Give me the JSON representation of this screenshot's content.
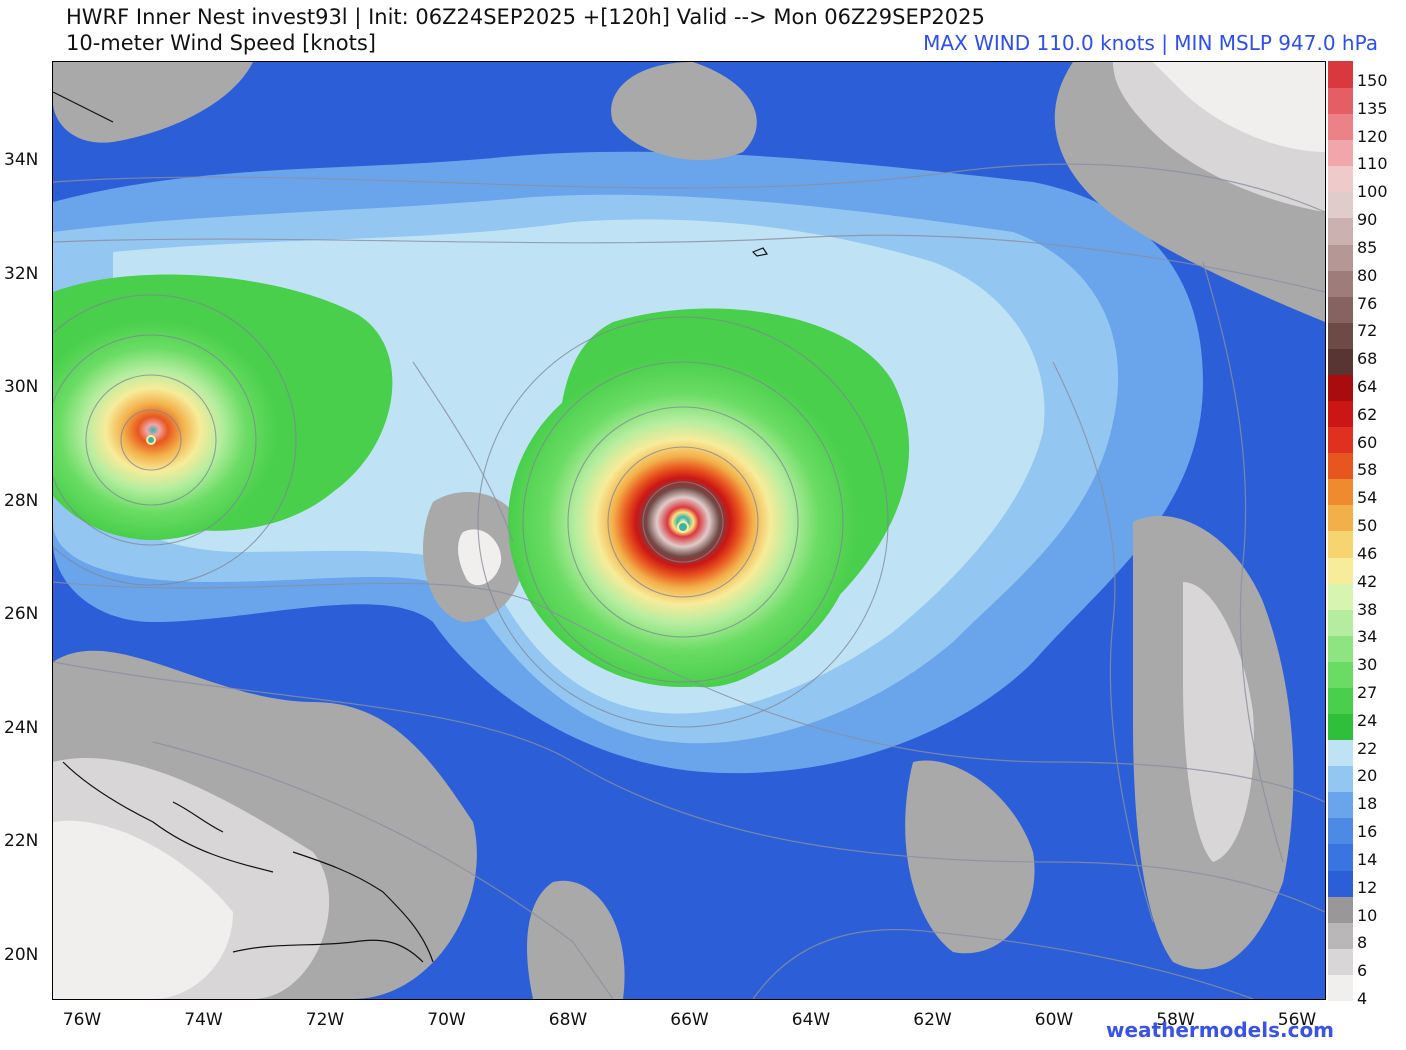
{
  "header": {
    "title_line1": "HWRF Inner Nest  invest93l | Init: 06Z24SEP2025 +[120h] Valid --> Mon 06Z29SEP2025",
    "title_line2": "10-meter Wind Speed [knots]",
    "stats": "MAX WIND 110.0 knots | MIN MSLP 947.0 hPa"
  },
  "axes": {
    "lat_labels": [
      "34N",
      "32N",
      "30N",
      "28N",
      "26N",
      "24N",
      "22N",
      "20N"
    ],
    "lon_labels": [
      "76W",
      "74W",
      "72W",
      "70W",
      "68W",
      "66W",
      "64W",
      "62W",
      "60W",
      "58W",
      "56W"
    ]
  },
  "colorbar": {
    "labels": [
      "150",
      "135",
      "120",
      "110",
      "100",
      "90",
      "85",
      "80",
      "76",
      "72",
      "68",
      "64",
      "62",
      "60",
      "58",
      "54",
      "50",
      "46",
      "42",
      "38",
      "34",
      "30",
      "27",
      "24",
      "22",
      "20",
      "18",
      "16",
      "14",
      "12",
      "10",
      "8",
      "6",
      "4"
    ],
    "colors": [
      "#f1eeee",
      "#d8d6d6",
      "#b9b7b7",
      "#999797",
      "#2c5fd7",
      "#3a74e0",
      "#4d8ae6",
      "#6aa5ec",
      "#94c6f2",
      "#bfe3f5",
      "#2fbf3a",
      "#49cf4b",
      "#6adc64",
      "#8ee481",
      "#b4ed9f",
      "#d7f4b0",
      "#f7ec9a",
      "#f6d470",
      "#f3b04a",
      "#f08a2e",
      "#e8561f",
      "#e03020",
      "#cc1616",
      "#a80c0c",
      "#5a3432",
      "#6e4a46",
      "#866260",
      "#9d7c79",
      "#b59795",
      "#cbb2b0",
      "#e0cccb",
      "#f0c9cb",
      "#f0a6aa",
      "#eb8287",
      "#e45e63",
      "#d9383e"
    ]
  },
  "colors": {
    "ocean_low": "#2c5fd7",
    "calm": "#a9a9a9",
    "ts_green": "#4ccf4a",
    "eye_core": "#cc1616",
    "stats_text": "#2d4ff0",
    "credit_text": "#3a52e6"
  },
  "storms": [
    {
      "name": "hurricane",
      "lon": -66.0,
      "lat": 27.6,
      "max_wind_kt": 110.0,
      "min_mslp_hpa": 947.0
    },
    {
      "name": "secondary-storm",
      "lon": -75.0,
      "lat": 29.1
    }
  ],
  "credit": "weathermodels.com"
}
